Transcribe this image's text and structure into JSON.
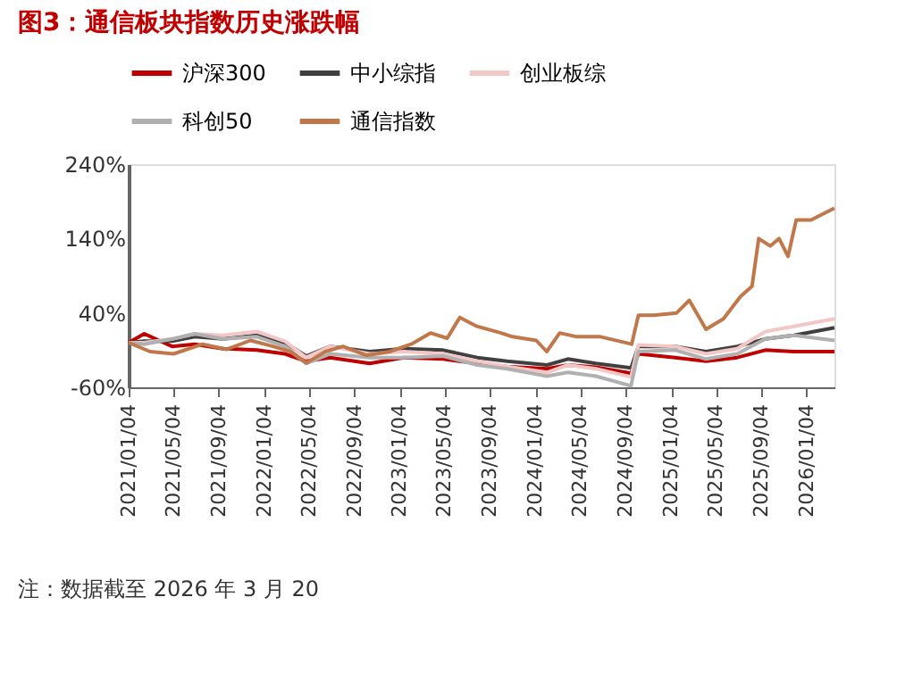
{
  "chart_data": {
    "type": "line",
    "title": "图3：通信板块指数历史涨跌幅",
    "annotations": [
      "注：数据截至 2026 年 3 月 20"
    ],
    "x": [
      "2021-01-04",
      "2021-02-15",
      "2021-05-01",
      "2021-07-01",
      "2021-09-15",
      "2021-12-15",
      "2022-03-01",
      "2022-04-27",
      "2022-07-01",
      "2022-10-15",
      "2023-01-15",
      "2023-05-01",
      "2023-08-01",
      "2023-10-20",
      "2024-02-05",
      "2024-04-01",
      "2024-06-15",
      "2024-09-18",
      "2024-10-08",
      "2025-01-15",
      "2025-04-08",
      "2025-07-01",
      "2025-09-15",
      "2025-12-01",
      "2026-03-20"
    ],
    "series": [
      {
        "name": "沪深300",
        "color": "#c00000",
        "values": [
          0,
          12,
          -5,
          -2,
          -8,
          -10,
          -15,
          -25,
          -20,
          -28,
          -20,
          -22,
          -28,
          -32,
          -35,
          -30,
          -33,
          -41,
          -15,
          -20,
          -25,
          -20,
          -10,
          -12,
          -12
        ]
      },
      {
        "name": "中小综指",
        "color": "#404040",
        "values": [
          0,
          2,
          2,
          8,
          5,
          10,
          0,
          -18,
          -5,
          -12,
          -8,
          -10,
          -20,
          -25,
          -30,
          -22,
          -28,
          -34,
          -5,
          -5,
          -12,
          -5,
          5,
          10,
          20
        ]
      },
      {
        "name": "创业板综",
        "color": "#f4c7c7",
        "values": [
          0,
          0,
          5,
          12,
          10,
          15,
          2,
          -20,
          -5,
          -15,
          -12,
          -15,
          -25,
          -32,
          -40,
          -30,
          -35,
          -46,
          -3,
          -5,
          -15,
          -8,
          15,
          22,
          32
        ]
      },
      {
        "name": "科创50",
        "color": "#b0b0b0",
        "values": [
          0,
          -2,
          5,
          12,
          5,
          8,
          -5,
          -28,
          -15,
          -20,
          -20,
          -18,
          -30,
          -35,
          -45,
          -40,
          -45,
          -58,
          -12,
          -10,
          -22,
          -15,
          5,
          10,
          3
        ]
      },
      {
        "name": "通信指数",
        "color": "#c0784a",
        "x": [
          "2021-01-04",
          "2021-03-03",
          "2021-05-05",
          "2021-07-22",
          "2021-09-25",
          "2021-11-28",
          "2022-01-28",
          "2022-03-16",
          "2022-04-28",
          "2022-06-18",
          "2022-08-04",
          "2022-10-06",
          "2022-12-08",
          "2023-02-04",
          "2023-03-28",
          "2023-05-12",
          "2023-06-15",
          "2023-07-31",
          "2023-10-04",
          "2023-11-04",
          "2024-01-07",
          "2024-02-04",
          "2024-03-10",
          "2024-04-25",
          "2024-06-28",
          "2024-09-20",
          "2024-10-08",
          "2024-11-18",
          "2025-01-19",
          "2025-02-22",
          "2025-04-08",
          "2025-05-25",
          "2025-07-10",
          "2025-08-10",
          "2025-08-28",
          "2025-09-28",
          "2025-10-22",
          "2025-11-15",
          "2025-12-07",
          "2026-01-16",
          "2026-03-20"
        ],
        "values": [
          0,
          -12,
          -15,
          -2,
          -9,
          3,
          -5,
          -12,
          -27,
          -12,
          -5,
          -17,
          -12,
          -2,
          13,
          6,
          34,
          22,
          13,
          8,
          3,
          -12,
          13,
          8,
          8,
          -2,
          37,
          37,
          40,
          57,
          18,
          32,
          62,
          76,
          140,
          130,
          140,
          116,
          165,
          165,
          181
        ]
      }
    ],
    "xlim": [
      "2021-01-04",
      "2026-03-20"
    ],
    "xticks": [
      {
        "value": "2021-01-04",
        "label": "2021/01/04"
      },
      {
        "value": "2021-05-04",
        "label": "2021/05/04"
      },
      {
        "value": "2021-09-04",
        "label": "2021/09/04"
      },
      {
        "value": "2022-01-04",
        "label": "2022/01/04"
      },
      {
        "value": "2022-05-04",
        "label": "2022/05/04"
      },
      {
        "value": "2022-09-04",
        "label": "2022/09/04"
      },
      {
        "value": "2023-01-04",
        "label": "2023/01/04"
      },
      {
        "value": "2023-05-04",
        "label": "2023/05/04"
      },
      {
        "value": "2023-09-04",
        "label": "2023/09/04"
      },
      {
        "value": "2024-01-04",
        "label": "2024/01/04"
      },
      {
        "value": "2024-05-04",
        "label": "2024/05/04"
      },
      {
        "value": "2024-09-04",
        "label": "2024/09/04"
      },
      {
        "value": "2025-01-04",
        "label": "2025/01/04"
      },
      {
        "value": "2025-05-04",
        "label": "2025/05/04"
      },
      {
        "value": "2025-09-04",
        "label": "2025/09/04"
      },
      {
        "value": "2026-01-04",
        "label": "2026/01/04"
      }
    ],
    "ylim": [
      -60,
      240
    ],
    "yticks": [
      {
        "value": -60,
        "label": "-60%"
      },
      {
        "value": 40,
        "label": "40%"
      },
      {
        "value": 140,
        "label": "140%"
      },
      {
        "value": 240,
        "label": "240%"
      }
    ],
    "grid": false,
    "legend": "top",
    "marker": "none",
    "line_style": "solid"
  }
}
